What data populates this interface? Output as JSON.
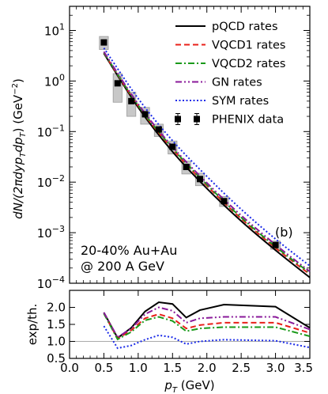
{
  "chart_data": [
    {
      "type": "line",
      "panel": "main",
      "ylabel": "dN/(2πdyp_T dp_T) (GeV^-2)",
      "ylabel_main": "dN/(2πdyp",
      "ylabel_sub1": "T",
      "ylabel_mid": "dp",
      "ylabel_sub2": "T",
      "ylabel_unit": ") (GeV",
      "ylabel_exp": "−2",
      "ylabel_close": ")",
      "yscale": "log",
      "xlim": [
        0.0,
        3.5
      ],
      "ylim": [
        0.0001,
        30
      ],
      "yticks": [
        {
          "base": "10",
          "exp": "1",
          "value": 10
        },
        {
          "base": "10",
          "exp": "0",
          "value": 1
        },
        {
          "base": "10",
          "exp": "−1",
          "value": 0.1
        },
        {
          "base": "10",
          "exp": "−2",
          "value": 0.01
        },
        {
          "base": "10",
          "exp": "−3",
          "value": 0.001
        },
        {
          "base": "10",
          "exp": "−4",
          "value": 0.0001
        }
      ],
      "panel_tag": "(b)",
      "annotation_line1": "20-40% Au+Au",
      "annotation_line2": "@ 200 A GeV",
      "legend_position": "top-right",
      "series": [
        {
          "name": "pQCD rates",
          "color": "#000000",
          "style": "solid",
          "x": [
            0.5,
            1.0,
            1.5,
            2.0,
            2.5,
            3.0,
            3.5
          ],
          "y": [
            3.5,
            0.3,
            0.04,
            0.0075,
            0.0017,
            0.00045,
            0.00013
          ]
        },
        {
          "name": "VQCD1 rates",
          "color": "#e8201a",
          "style": "dashed",
          "x": [
            0.5,
            1.0,
            1.5,
            2.0,
            2.5,
            3.0,
            3.5
          ],
          "y": [
            3.6,
            0.32,
            0.045,
            0.0085,
            0.0019,
            0.0005,
            0.00015
          ]
        },
        {
          "name": "VQCD2 rates",
          "color": "#1a9a1a",
          "style": "dashdot",
          "x": [
            0.5,
            1.0,
            1.5,
            2.0,
            2.5,
            3.0,
            3.5
          ],
          "y": [
            3.65,
            0.33,
            0.047,
            0.009,
            0.002,
            0.00053,
            0.00016
          ]
        },
        {
          "name": "GN rates",
          "color": "#8a1a9a",
          "style": "dashdotdot",
          "x": [
            0.5,
            1.0,
            1.5,
            2.0,
            2.5,
            3.0,
            3.5
          ],
          "y": [
            3.8,
            0.35,
            0.05,
            0.0097,
            0.0022,
            0.00058,
            0.00017
          ]
        },
        {
          "name": "SYM rates",
          "color": "#1a2ae8",
          "style": "dotted",
          "x": [
            0.5,
            1.0,
            1.5,
            2.0,
            2.5,
            3.0,
            3.5
          ],
          "y": [
            4.5,
            0.45,
            0.066,
            0.013,
            0.0029,
            0.00075,
            0.00022
          ]
        }
      ],
      "data_series": {
        "name": "PHENIX data",
        "x": [
          0.5,
          0.7,
          0.9,
          1.1,
          1.3,
          1.5,
          1.7,
          1.9,
          2.25,
          3.0
        ],
        "y": [
          5.8,
          0.9,
          0.4,
          0.22,
          0.11,
          0.05,
          0.02,
          0.0115,
          0.0042,
          0.00057
        ],
        "box_lo": [
          4.2,
          0.38,
          0.2,
          0.14,
          0.08,
          0.036,
          0.0145,
          0.0085,
          0.0033,
          0.00047
        ],
        "box_hi": [
          7.6,
          1.4,
          0.6,
          0.3,
          0.14,
          0.065,
          0.026,
          0.015,
          0.0052,
          0.00068
        ]
      }
    },
    {
      "type": "line",
      "panel": "ratio",
      "xlabel": "p_T (GeV)",
      "xlabel_main": "p",
      "xlabel_sub": "T",
      "xlabel_unit": " (GeV)",
      "ylabel": "exp/th.",
      "xlim": [
        0.0,
        3.5
      ],
      "ylim": [
        0.5,
        2.5
      ],
      "xticks": [
        "0.0",
        "0.5",
        "1.0",
        "1.5",
        "2.0",
        "2.5",
        "3.0",
        "3.5"
      ],
      "yticks": [
        "0.5",
        "1.0",
        "1.5",
        "2.0"
      ],
      "reference_line": 1.0,
      "series": [
        {
          "name": "pQCD rates",
          "color": "#000000",
          "style": "solid",
          "x": [
            0.5,
            0.7,
            0.9,
            1.1,
            1.3,
            1.5,
            1.7,
            1.9,
            2.25,
            3.0,
            3.5
          ],
          "y": [
            1.85,
            1.1,
            1.4,
            1.88,
            2.15,
            2.1,
            1.7,
            1.92,
            2.08,
            2.02,
            1.4
          ]
        },
        {
          "name": "VQCD1 rates",
          "color": "#e8201a",
          "style": "dashed",
          "x": [
            0.5,
            0.7,
            0.9,
            1.1,
            1.3,
            1.5,
            1.7,
            1.9,
            2.25,
            3.0,
            3.5
          ],
          "y": [
            1.82,
            1.08,
            1.33,
            1.68,
            1.8,
            1.68,
            1.38,
            1.48,
            1.55,
            1.55,
            1.25
          ]
        },
        {
          "name": "VQCD2 rates",
          "color": "#1a9a1a",
          "style": "dashdot",
          "x": [
            0.5,
            0.7,
            0.9,
            1.1,
            1.3,
            1.5,
            1.7,
            1.9,
            2.25,
            3.0,
            3.5
          ],
          "y": [
            1.82,
            1.06,
            1.28,
            1.62,
            1.72,
            1.6,
            1.3,
            1.38,
            1.42,
            1.42,
            1.15
          ]
        },
        {
          "name": "GN rates",
          "color": "#8a1a9a",
          "style": "dashdotdot",
          "x": [
            0.5,
            0.7,
            0.9,
            1.1,
            1.3,
            1.5,
            1.7,
            1.9,
            2.25,
            3.0,
            3.5
          ],
          "y": [
            1.85,
            1.12,
            1.38,
            1.8,
            2.0,
            1.9,
            1.55,
            1.68,
            1.72,
            1.72,
            1.35
          ]
        },
        {
          "name": "SYM rates",
          "color": "#1a2ae8",
          "style": "dotted",
          "x": [
            0.5,
            0.7,
            0.9,
            1.1,
            1.3,
            1.5,
            1.7,
            1.9,
            2.25,
            3.0,
            3.5
          ],
          "y": [
            1.45,
            0.8,
            0.88,
            1.05,
            1.18,
            1.12,
            0.92,
            1.0,
            1.05,
            1.02,
            0.82
          ]
        }
      ]
    }
  ]
}
